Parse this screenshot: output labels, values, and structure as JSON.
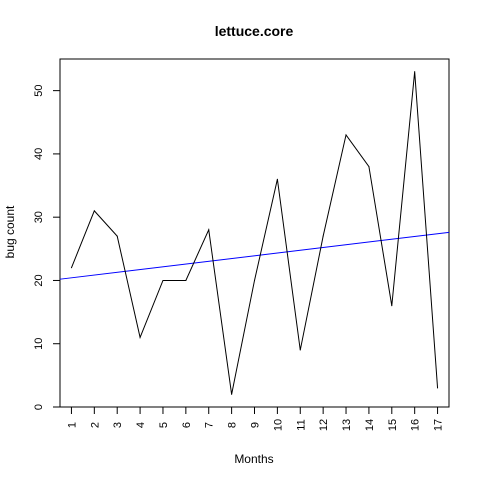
{
  "chart_data": {
    "type": "line",
    "title": "lettuce.core",
    "xlabel": "Months",
    "ylabel": "bug count",
    "categories": [
      "1",
      "2",
      "3",
      "4",
      "5",
      "6",
      "7",
      "8",
      "9",
      "10",
      "11",
      "12",
      "13",
      "14",
      "15",
      "16",
      "17"
    ],
    "series": [
      {
        "values": [
          22,
          31,
          27,
          11,
          20,
          20,
          28,
          2,
          20,
          36,
          9,
          27,
          43,
          38,
          16,
          53,
          3
        ],
        "color": "#000000"
      }
    ],
    "trend_line": {
      "start": [
        0.5,
        20.2
      ],
      "end": [
        17.5,
        27.6
      ],
      "color": "#0000ff"
    },
    "y_ticks": [
      0,
      10,
      20,
      30,
      40,
      50
    ],
    "xlim": [
      0.5,
      17.5
    ],
    "ylim": [
      0,
      55
    ],
    "grid": false,
    "legend": "none"
  }
}
